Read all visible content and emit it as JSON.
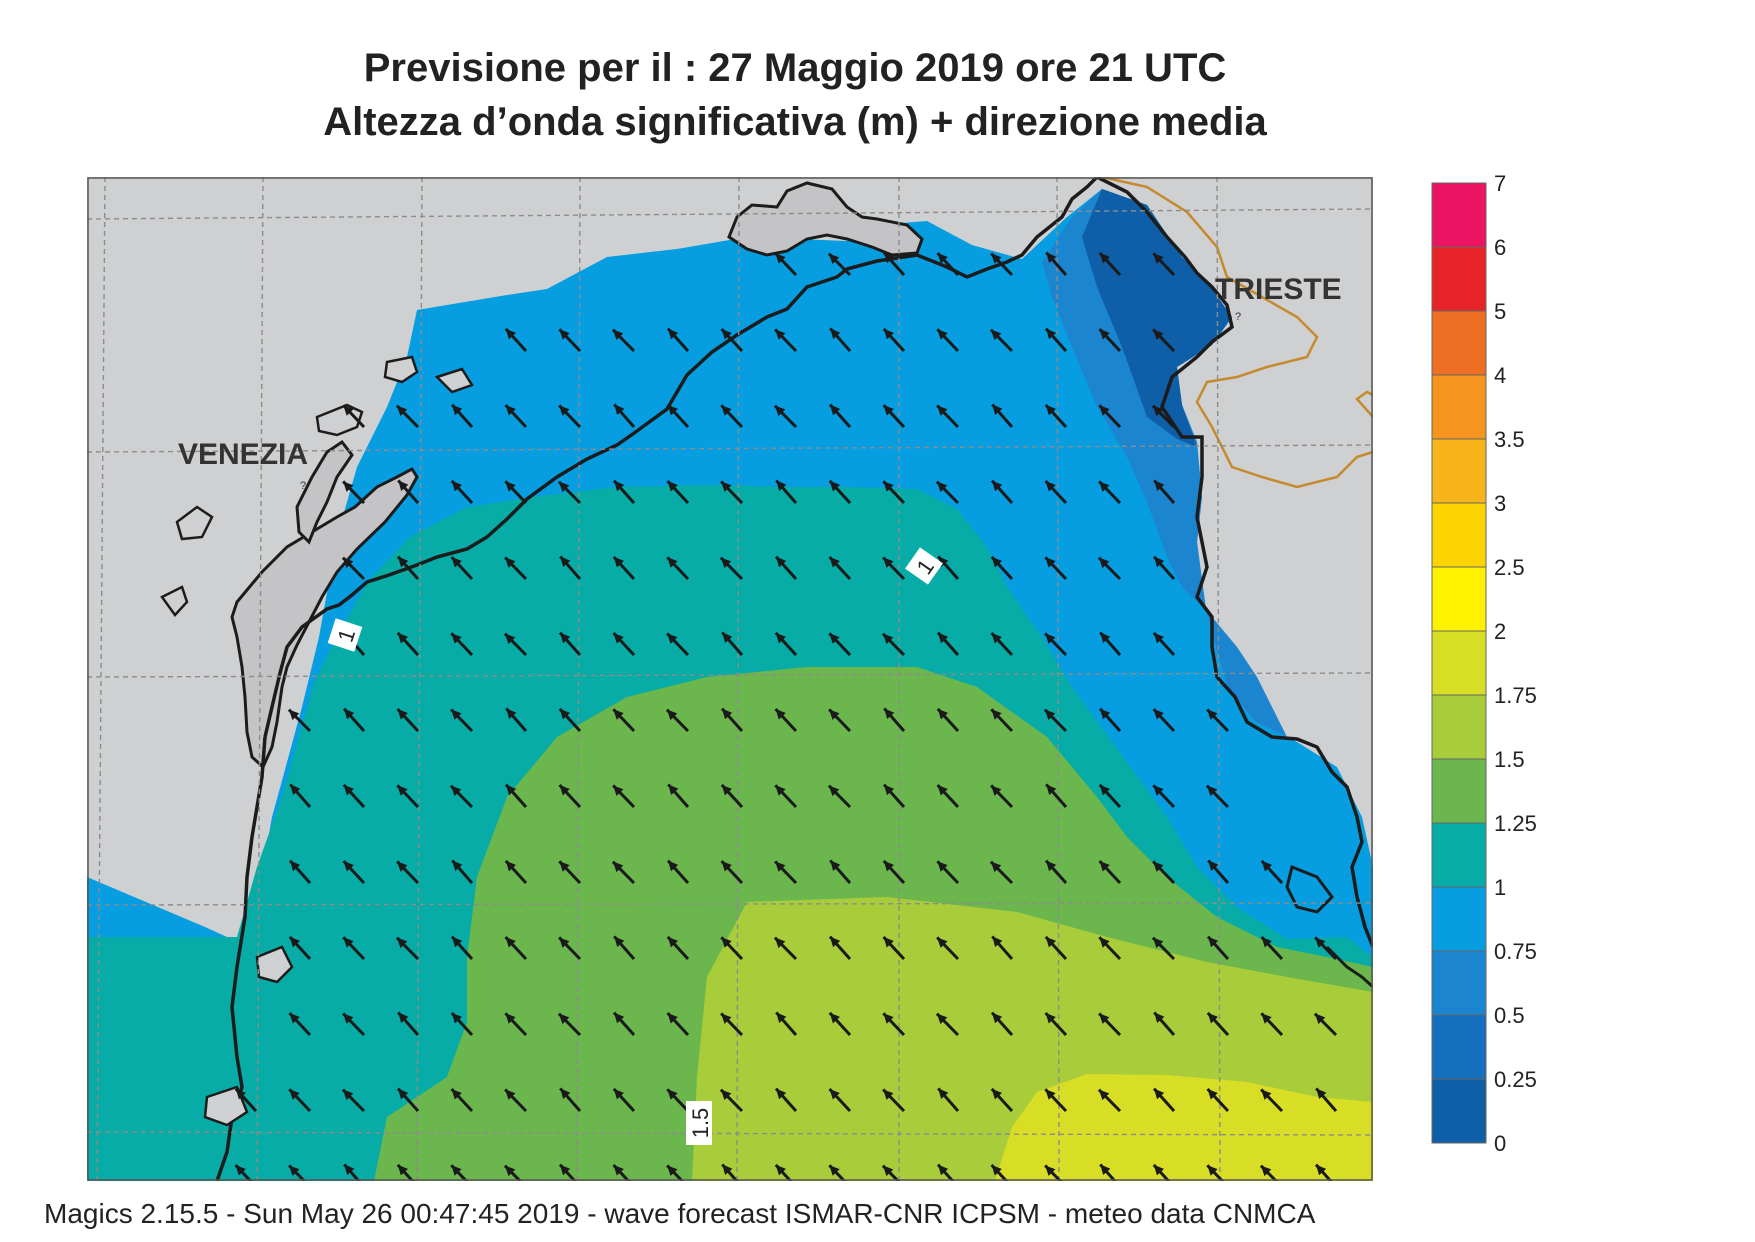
{
  "title": {
    "line1": "Previsione per il  :  27   Maggio  2019   ore 21 UTC",
    "line2": "Altezza d’onda significativa (m) + direzione media"
  },
  "map": {
    "places": [
      "VENEZIA",
      "TRIESTE"
    ],
    "contour_labels": [
      "1",
      "1",
      "1.5"
    ],
    "land_color": "#cfd0d2",
    "coast_color": "#1c1c1c",
    "border_color": "#c48a2c",
    "arrow_color": "#1a1a1a",
    "mean_wave_direction": "NW"
  },
  "colorbar": {
    "ticks": [
      "7",
      "6",
      "5",
      "4",
      "3.5",
      "3",
      "2.5",
      "2",
      "1.75",
      "1.5",
      "1.25",
      "1",
      "0.75",
      "0.5",
      "0.25",
      "0"
    ],
    "colors": [
      "#ec1363",
      "#e8242b",
      "#ee6f23",
      "#f5941f",
      "#f8b41b",
      "#fdd401",
      "#fef200",
      "#d8de26",
      "#a9cc3b",
      "#6bb74e",
      "#07aca6",
      "#069ee0",
      "#1b85cf",
      "#156fbf",
      "#0f5ea8"
    ],
    "units": "m"
  },
  "footer": "Magics 2.15.5 - Sun May 26 00:47:45 2019 - wave forecast  ISMAR-CNR  ICPSM - meteo data   CNMCA"
}
